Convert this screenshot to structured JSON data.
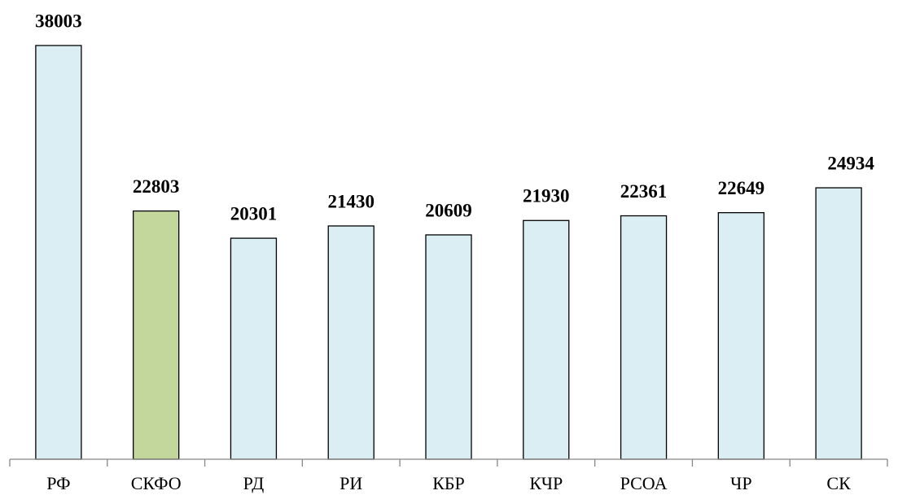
{
  "chart_data": {
    "type": "bar",
    "categories": [
      "РФ",
      "СКФО",
      "РД",
      "РИ",
      "КБР",
      "КЧР",
      "РСОА",
      "ЧР",
      "СК"
    ],
    "values": [
      38003,
      22803,
      20301,
      21430,
      20609,
      21930,
      22361,
      22649,
      24934
    ],
    "colors": [
      "#daeef3",
      "#c3d69b",
      "#daeef3",
      "#daeef3",
      "#daeef3",
      "#daeef3",
      "#daeef3",
      "#daeef3",
      "#daeef3"
    ]
  }
}
